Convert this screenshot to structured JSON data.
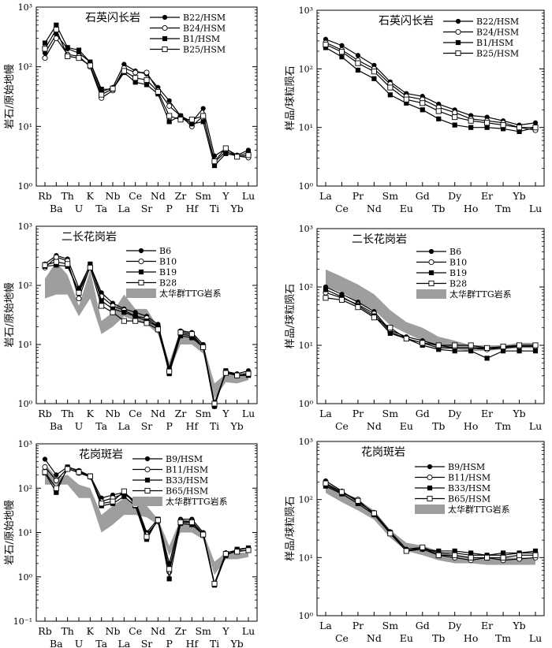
{
  "figure": {
    "ylabel_mantle": "岩石/原始地幔",
    "ylabel_chondrite": "样品/球粒陨石",
    "ttg_label": "太华群TTG岩系"
  },
  "chart_data": [
    {
      "id": "a",
      "type": "line",
      "title": "石英闪长岩",
      "yscale": "log",
      "ylim": [
        1,
        1000
      ],
      "ytick_labels": [
        "10⁰",
        "10¹",
        "10²",
        "10³"
      ],
      "categories": [
        "Rb",
        "Ba",
        "Th",
        "U",
        "K",
        "Ta",
        "Nb",
        "La",
        "Ce",
        "Sr",
        "Nd",
        "P",
        "Zr",
        "Hf",
        "Sm",
        "Ti",
        "Y",
        "Yb",
        "Lu"
      ],
      "series": [
        {
          "name": "B22/HSM",
          "marker": "filled-circle",
          "values": [
            170,
            350,
            200,
            170,
            120,
            38,
            45,
            110,
            85,
            75,
            45,
            27,
            15,
            12,
            20,
            3.2,
            4.2,
            3.3,
            4.0
          ]
        },
        {
          "name": "B24/HSM",
          "marker": "open-circle",
          "values": [
            140,
            300,
            160,
            150,
            100,
            30,
            40,
            95,
            80,
            80,
            40,
            22,
            15,
            10,
            15,
            2.5,
            3.8,
            3.2,
            3.0
          ]
        },
        {
          "name": "B1/HSM",
          "marker": "filled-square",
          "values": [
            250,
            500,
            210,
            190,
            120,
            42,
            42,
            80,
            55,
            50,
            35,
            12,
            15,
            11,
            12,
            2.2,
            3.5,
            3.2,
            3.6
          ]
        },
        {
          "name": "B25/HSM",
          "marker": "open-square",
          "values": [
            200,
            420,
            150,
            140,
            105,
            34,
            43,
            85,
            65,
            60,
            38,
            15,
            13,
            13,
            15,
            2.6,
            4.3,
            3.1,
            3.3
          ]
        }
      ]
    },
    {
      "id": "b",
      "type": "line",
      "title": "石英闪长岩",
      "yscale": "log",
      "ylim": [
        1,
        1000
      ],
      "ytick_labels": [
        "10⁰",
        "10¹",
        "10²",
        "10³"
      ],
      "categories": [
        "La",
        "Ce",
        "Pr",
        "Nd",
        "Sm",
        "Eu",
        "Gd",
        "Tb",
        "Dy",
        "Ho",
        "Er",
        "Tm",
        "Yb",
        "Lu"
      ],
      "series": [
        {
          "name": "B22/HSM",
          "marker": "filled-circle",
          "values": [
            320,
            250,
            170,
            115,
            60,
            38,
            34,
            25,
            20,
            16,
            15,
            13,
            11,
            12
          ]
        },
        {
          "name": "B24/HSM",
          "marker": "open-circle",
          "values": [
            280,
            210,
            140,
            100,
            55,
            34,
            30,
            22,
            18,
            14,
            13,
            12,
            10,
            9
          ]
        },
        {
          "name": "B1/HSM",
          "marker": "filled-square",
          "values": [
            230,
            160,
            95,
            68,
            36,
            26,
            20,
            14,
            11,
            10,
            10,
            9.5,
            8.5,
            10
          ]
        },
        {
          "name": "B25/HSM",
          "marker": "open-square",
          "values": [
            260,
            195,
            125,
            90,
            48,
            30,
            26,
            19,
            15,
            13,
            12,
            11,
            10,
            10
          ]
        }
      ]
    },
    {
      "id": "c",
      "type": "line",
      "title": "二长花岗岩",
      "yscale": "log",
      "ylim": [
        1,
        1000
      ],
      "ytick_labels": [
        "10⁰",
        "10¹",
        "10²",
        "10³"
      ],
      "categories": [
        "Rb",
        "Ba",
        "Th",
        "U",
        "K",
        "Ta",
        "Nb",
        "La",
        "Ce",
        "Sr",
        "Nd",
        "P",
        "Zr",
        "Hf",
        "Sm",
        "Ti",
        "Y",
        "Yb",
        "Lu"
      ],
      "series": [
        {
          "name": "B6",
          "marker": "filled-circle",
          "values": [
            230,
            320,
            280,
            90,
            220,
            75,
            50,
            40,
            35,
            30,
            22,
            4,
            17,
            16,
            10,
            1.0,
            3.5,
            3.2,
            3.6
          ]
        },
        {
          "name": "B10",
          "marker": "open-circle",
          "values": [
            200,
            300,
            260,
            60,
            210,
            65,
            45,
            38,
            30,
            28,
            20,
            3.5,
            15,
            14,
            9,
            0.9,
            3.4,
            3.0,
            3.2
          ]
        },
        {
          "name": "B19",
          "marker": "filled-square",
          "values": [
            210,
            220,
            210,
            80,
            230,
            55,
            40,
            35,
            30,
            25,
            20,
            3.2,
            14,
            13,
            9,
            0.9,
            3.6,
            3.0,
            3.0
          ]
        },
        {
          "name": "B28",
          "marker": "open-square",
          "values": [
            220,
            250,
            230,
            75,
            200,
            45,
            35,
            25,
            25,
            23,
            18,
            3.5,
            16,
            15,
            9,
            1.0,
            3.3,
            3.0,
            3.2
          ]
        }
      ],
      "envelope": {
        "name": "太华群TTG岩系",
        "upper": [
          130,
          250,
          150,
          45,
          180,
          25,
          35,
          70,
          40,
          40,
          20,
          5,
          18,
          16,
          10,
          2.2,
          3.2,
          3.2,
          3.4
        ],
        "lower": [
          60,
          70,
          70,
          30,
          60,
          15,
          20,
          30,
          25,
          22,
          15,
          3.5,
          10,
          10,
          7,
          1.2,
          2.3,
          2.2,
          2.5
        ]
      }
    },
    {
      "id": "d",
      "type": "line",
      "title": "二长花岗岩",
      "yscale": "log",
      "ylim": [
        1,
        1000
      ],
      "ytick_labels": [
        "10⁰",
        "10¹",
        "10²",
        "10³"
      ],
      "categories": [
        "La",
        "Ce",
        "Pr",
        "Nd",
        "Sm",
        "Eu",
        "Gd",
        "Tb",
        "Dy",
        "Ho",
        "Er",
        "Tm",
        "Yb",
        "Lu"
      ],
      "series": [
        {
          "name": "B6",
          "marker": "filled-circle",
          "values": [
            100,
            75,
            55,
            38,
            18,
            14,
            12,
            10,
            9,
            9,
            9,
            9,
            10,
            10
          ]
        },
        {
          "name": "B10",
          "marker": "open-circle",
          "values": [
            80,
            65,
            50,
            35,
            17,
            13,
            11,
            9,
            9,
            9,
            8.5,
            9,
            9.5,
            9.5
          ]
        },
        {
          "name": "B19",
          "marker": "filled-square",
          "values": [
            90,
            68,
            48,
            32,
            16,
            13,
            10,
            8.5,
            8,
            8,
            6,
            8,
            8,
            8
          ]
        },
        {
          "name": "B28",
          "marker": "open-square",
          "values": [
            65,
            60,
            45,
            30,
            20,
            13,
            11,
            10,
            10,
            10,
            9,
            9.5,
            10,
            10
          ]
        }
      ],
      "envelope": {
        "name": "太华群TTG岩系",
        "upper": [
          200,
          150,
          110,
          75,
          40,
          25,
          20,
          14,
          12,
          10,
          10,
          10,
          11,
          11
        ],
        "lower": [
          100,
          80,
          55,
          40,
          22,
          16,
          12,
          9,
          8.5,
          8,
          8,
          8.5,
          9,
          9
        ]
      }
    },
    {
      "id": "e",
      "type": "line",
      "title": "花岗斑岩",
      "yscale": "log",
      "ylim": [
        0.1,
        1000
      ],
      "ytick_labels": [
        "10⁻¹",
        "10⁰",
        "10¹",
        "10²",
        "10³"
      ],
      "categories": [
        "Rb",
        "Ba",
        "Th",
        "U",
        "K",
        "Ta",
        "Nb",
        "La",
        "Ce",
        "Sr",
        "Nd",
        "P",
        "Zr",
        "Hf",
        "Sm",
        "Ti",
        "Y",
        "Yb",
        "Lu"
      ],
      "series": [
        {
          "name": "B9/HSM",
          "marker": "filled-circle",
          "values": [
            450,
            200,
            300,
            250,
            190,
            60,
            70,
            80,
            50,
            10,
            20,
            2,
            20,
            20,
            10,
            0.7,
            3.5,
            4,
            4.5
          ]
        },
        {
          "name": "B11/HSM",
          "marker": "open-circle",
          "values": [
            300,
            150,
            280,
            220,
            180,
            50,
            60,
            75,
            48,
            9,
            18,
            1.3,
            18,
            18,
            9,
            0.7,
            3.2,
            3.8,
            4
          ]
        },
        {
          "name": "B33/HSM",
          "marker": "filled-square",
          "values": [
            220,
            80,
            300,
            240,
            190,
            40,
            45,
            65,
            40,
            7,
            20,
            0.9,
            16,
            15,
            9,
            0.65,
            3,
            4.2,
            4.5
          ]
        },
        {
          "name": "B65/HSM",
          "marker": "open-square",
          "values": [
            230,
            100,
            270,
            230,
            185,
            45,
            50,
            85,
            42,
            8,
            19,
            1.5,
            17,
            17,
            9,
            0.7,
            3.3,
            3.7,
            4
          ]
        }
      ],
      "envelope": {
        "name": "太华群TTG岩系",
        "upper": [
          350,
          180,
          200,
          120,
          100,
          25,
          40,
          60,
          45,
          40,
          20,
          5,
          20,
          18,
          10,
          2.2,
          3.5,
          3.5,
          3.5
        ],
        "lower": [
          120,
          120,
          120,
          60,
          60,
          10,
          15,
          25,
          25,
          22,
          15,
          3,
          10,
          10,
          7,
          1.1,
          2.5,
          2.5,
          2.8
        ]
      }
    },
    {
      "id": "f",
      "type": "line",
      "title": "花岗斑岩",
      "yscale": "log",
      "ylim": [
        1,
        1000
      ],
      "ytick_labels": [
        "10⁰",
        "10¹",
        "10²",
        "10³"
      ],
      "categories": [
        "La",
        "Ce",
        "Pr",
        "Nd",
        "Sm",
        "Eu",
        "Gd",
        "Tb",
        "Dy",
        "Ho",
        "Er",
        "Tm",
        "Yb",
        "Lu"
      ],
      "series": [
        {
          "name": "B9/HSM",
          "marker": "filled-circle",
          "values": [
            210,
            140,
            90,
            60,
            28,
            14,
            15,
            12,
            12,
            11,
            11,
            11,
            12,
            12
          ]
        },
        {
          "name": "B11/HSM",
          "marker": "open-circle",
          "values": [
            180,
            130,
            100,
            55,
            26,
            13,
            14,
            11,
            10,
            9,
            10,
            9,
            9.5,
            10
          ]
        },
        {
          "name": "B33/HSM",
          "marker": "filled-square",
          "values": [
            170,
            125,
            85,
            55,
            27,
            13,
            14,
            13,
            13,
            12,
            11,
            12,
            12,
            13
          ]
        },
        {
          "name": "B65/HSM",
          "marker": "open-square",
          "values": [
            190,
            135,
            95,
            58,
            26,
            13,
            15,
            11,
            11,
            10,
            10,
            10,
            11,
            11
          ]
        }
      ],
      "envelope": {
        "name": "太华群TTG岩系",
        "upper": [
          200,
          140,
          100,
          65,
          30,
          18,
          16,
          13,
          11,
          10,
          10,
          10,
          10,
          10
        ],
        "lower": [
          130,
          90,
          65,
          45,
          22,
          13,
          11,
          9,
          8,
          8,
          7.5,
          7.5,
          7.5,
          7.5
        ]
      }
    }
  ]
}
